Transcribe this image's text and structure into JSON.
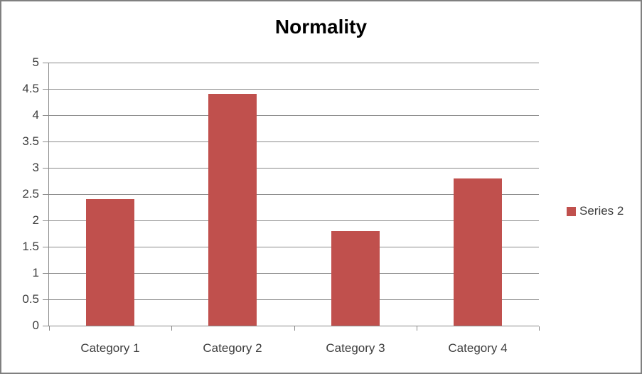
{
  "chart_data": {
    "type": "bar",
    "title": "Normality",
    "categories": [
      "Category 1",
      "Category 2",
      "Category 3",
      "Category 4"
    ],
    "series": [
      {
        "name": "Series 2",
        "values": [
          2.4,
          4.4,
          1.8,
          2.8
        ],
        "color": "#C0504D"
      }
    ],
    "xlabel": "",
    "ylabel": "",
    "ylim": [
      0,
      5
    ],
    "ytick_step": 0.5,
    "ytick_labels": [
      "0",
      "0.5",
      "1",
      "1.5",
      "2",
      "2.5",
      "3",
      "3.5",
      "4",
      "4.5",
      "5"
    ],
    "grid": true,
    "legend_position": "right"
  },
  "colors": {
    "bar": "#C0504D",
    "gridline": "#8A8A8A",
    "axis": "#8A8A8A",
    "frame_border": "#808080",
    "label_text": "#3D3D3D",
    "title_text": "#000000"
  }
}
